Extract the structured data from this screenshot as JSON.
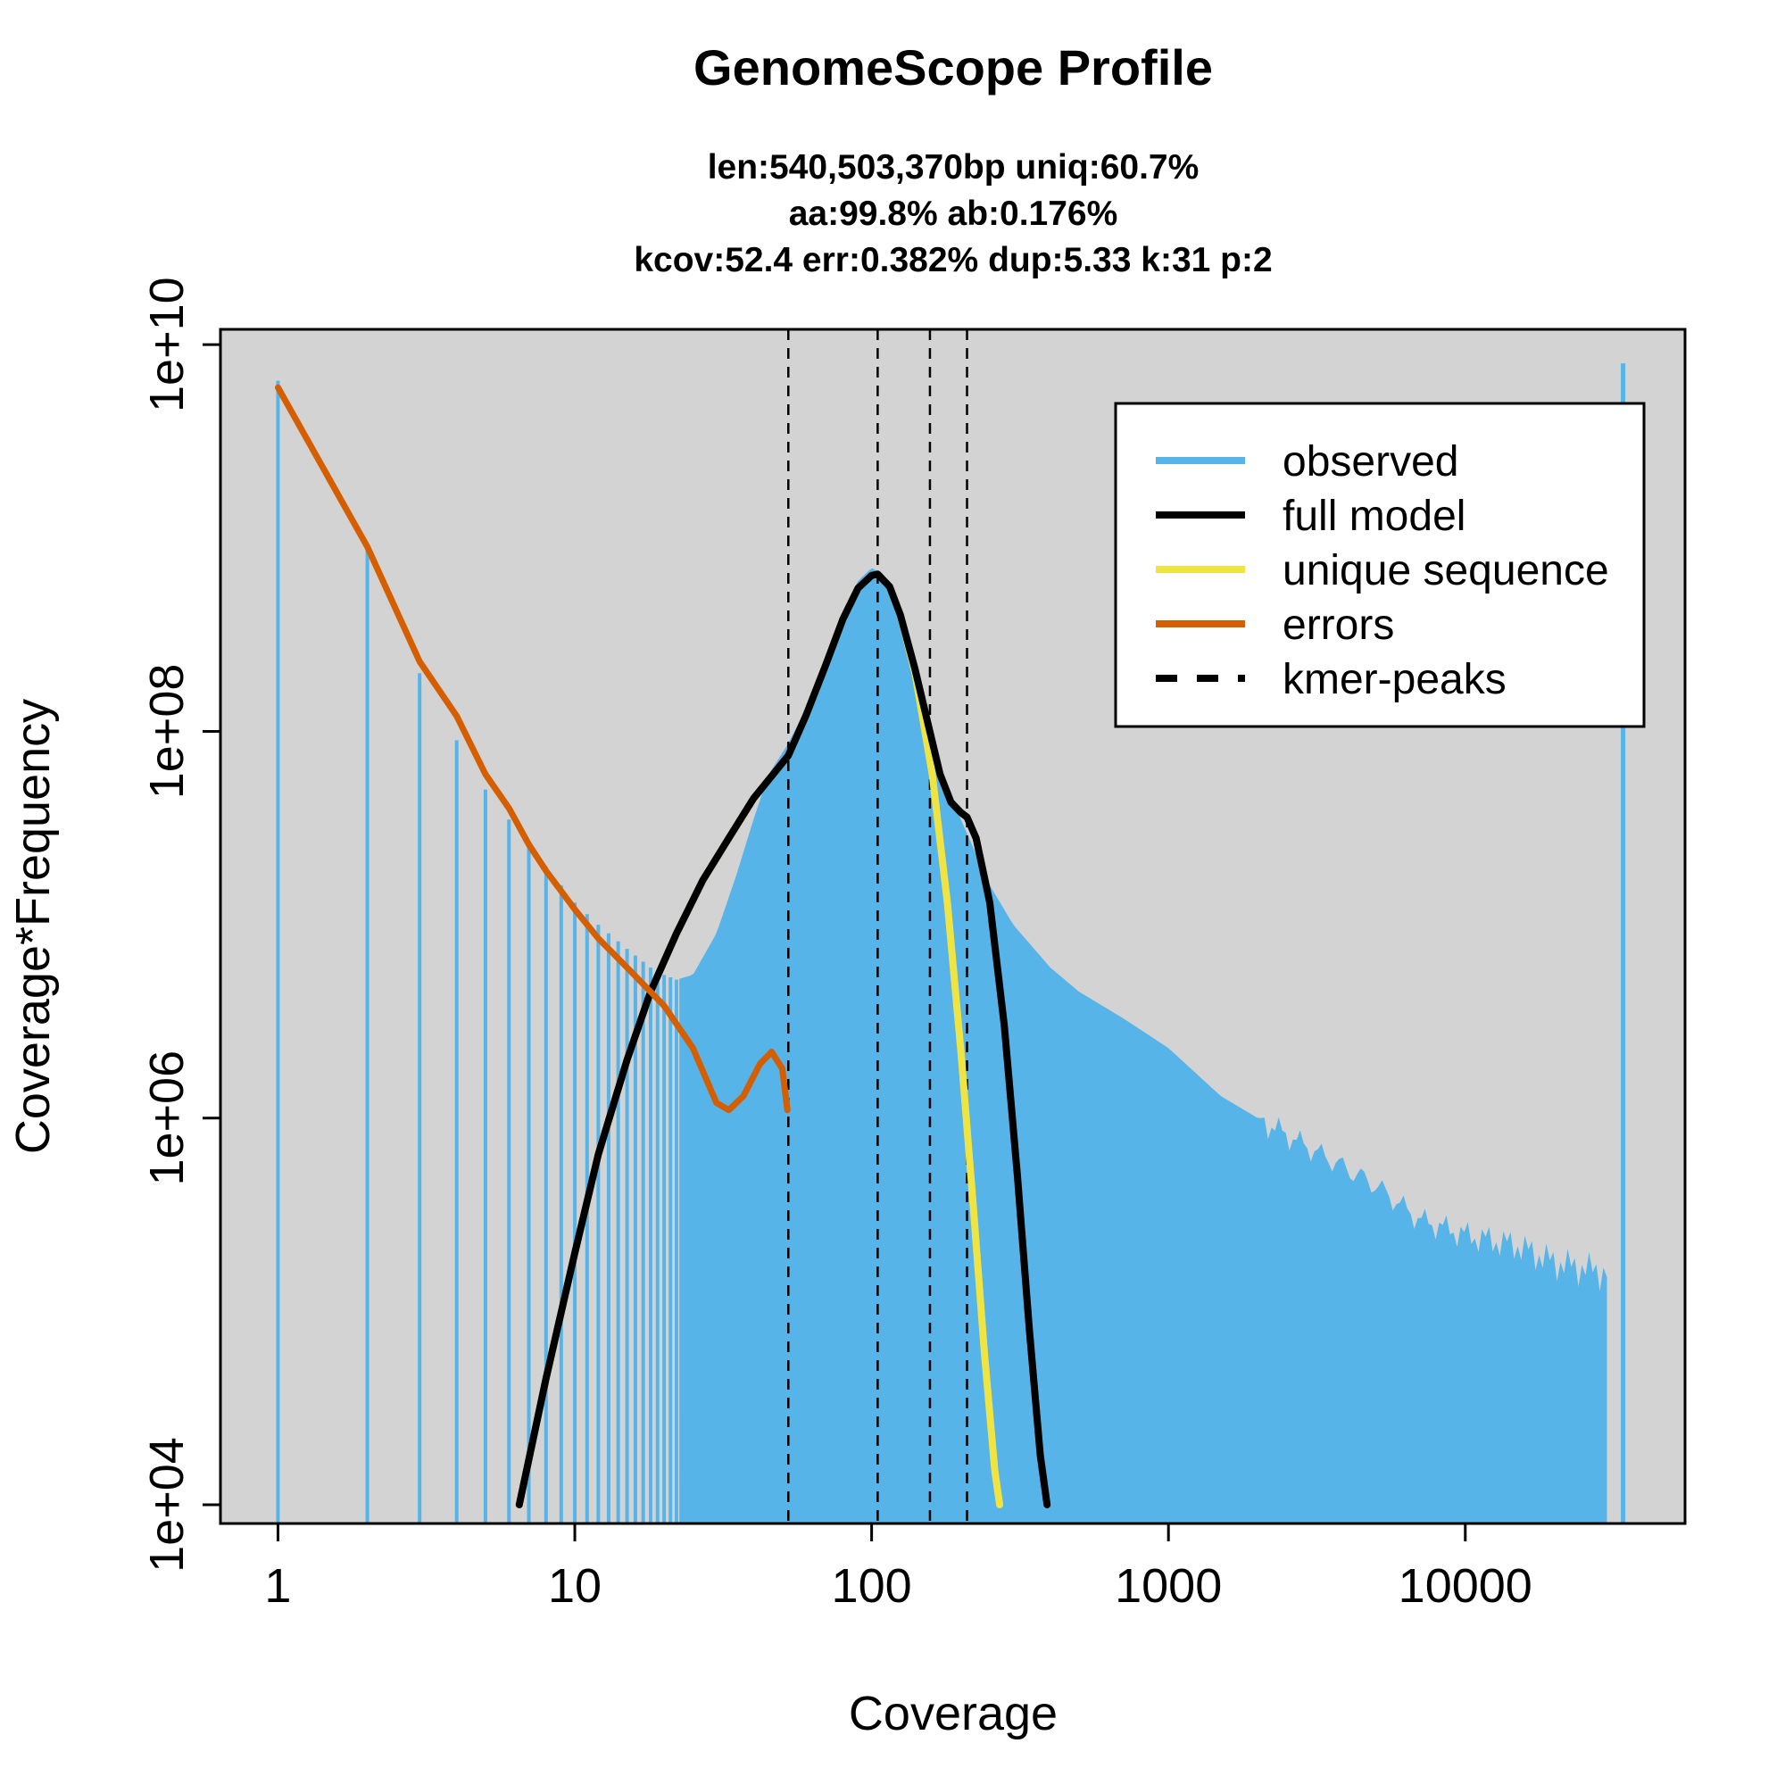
{
  "chart_data": {
    "type": "line",
    "title": "GenomeScope Profile",
    "subtitle_lines": [
      "len:540,503,370bp uniq:60.7%",
      "aa:99.8% ab:0.176%",
      "kcov:52.4 err:0.382%  dup:5.33  k:31 p:2"
    ],
    "xlabel": "Coverage",
    "ylabel": "Coverage*Frequency",
    "x_scale": "log",
    "y_scale": "log",
    "xlim": [
      0.64,
      55000
    ],
    "ylim": [
      8000,
      12000000000
    ],
    "x_ticks": [
      1,
      10,
      100,
      1000,
      10000
    ],
    "x_tick_labels": [
      "1",
      "10",
      "100",
      "1000",
      "10000"
    ],
    "y_ticks": [
      10000,
      1000000,
      100000000,
      10000000000
    ],
    "y_tick_labels": [
      "1e+04",
      "1e+06",
      "1e+08",
      "1e+10"
    ],
    "kmer_peaks": [
      52.4,
      104.8,
      157.2,
      209.6
    ],
    "legend": {
      "position": "top-right",
      "items": [
        {
          "label": "observed",
          "color": "#56B4E9",
          "style": "solid"
        },
        {
          "label": "full model",
          "color": "#000000",
          "style": "solid"
        },
        {
          "label": "unique sequence",
          "color": "#F0E442",
          "style": "solid"
        },
        {
          "label": "errors",
          "color": "#D55E00",
          "style": "solid"
        },
        {
          "label": "kmer-peaks",
          "color": "#000000",
          "style": "dashed"
        }
      ]
    },
    "colors": {
      "panel_background": "#D3D3D3",
      "observed": "#56B4E9",
      "full_model": "#000000",
      "unique_sequence": "#F0E442",
      "errors": "#D55E00",
      "peaks": "#000000"
    },
    "series": [
      {
        "name": "observed",
        "style": "histogram",
        "x": [
          1,
          2,
          3,
          4,
          5,
          6,
          7,
          8,
          9,
          10,
          12,
          15,
          18,
          20,
          22,
          25,
          30,
          35,
          40,
          45,
          52,
          60,
          70,
          80,
          90,
          100,
          110,
          120,
          140,
          160,
          180,
          200,
          220,
          250,
          300,
          400,
          500,
          700,
          1000,
          1500,
          2000,
          3000,
          5000,
          7000,
          10000,
          15000,
          20000,
          30000,
          34000
        ],
        "y": [
          6500000000,
          900000000,
          200000000,
          90000000,
          50000000,
          35000000,
          25000000,
          20000000,
          16000000,
          13000000,
          10000000,
          7500000,
          6000000,
          5500000,
          5200000,
          5500000,
          9000000,
          18000000,
          35000000,
          60000000,
          85000000,
          130000000,
          230000000,
          420000000,
          600000000,
          700000000,
          650000000,
          450000000,
          230000000,
          90000000,
          50000000,
          35000000,
          25000000,
          16000000,
          10000000,
          6000000,
          4500000,
          3300000,
          2300000,
          1300000,
          1000000,
          700000,
          450000,
          300000,
          250000,
          220000,
          180000,
          160000,
          8000000000
        ]
      },
      {
        "name": "errors",
        "x": [
          1,
          2,
          3,
          4,
          5,
          6,
          7,
          8,
          10,
          12,
          15,
          18,
          20,
          25,
          30,
          33,
          37,
          42,
          46,
          50,
          52
        ],
        "y": [
          6000000000,
          900000000,
          230000000,
          120000000,
          60000000,
          40000000,
          26000000,
          19000000,
          12000000,
          8500000,
          6000000,
          4500000,
          3800000,
          2300000,
          1200000,
          1100000,
          1300000,
          1900000,
          2200000,
          1800000,
          1100000
        ]
      },
      {
        "name": "unique sequence",
        "x": [
          6.5,
          8,
          10,
          12,
          15,
          18,
          22,
          27,
          33,
          40,
          52.4,
          60,
          70,
          80,
          90,
          100,
          104.8,
          115,
          125,
          140,
          160,
          180,
          200,
          220,
          240,
          260,
          270
        ],
        "y": [
          10000,
          45000,
          200000,
          650000,
          2000000,
          4500000,
          9000000,
          17000000,
          28000000,
          45000000,
          75000000,
          120000000,
          220000000,
          380000000,
          550000000,
          640000000,
          650000000,
          560000000,
          400000000,
          200000000,
          60000000,
          13000000,
          2200000,
          350000,
          60000,
          15000,
          10000
        ]
      },
      {
        "name": "full model",
        "x": [
          6.5,
          8,
          10,
          12,
          15,
          18,
          22,
          27,
          33,
          40,
          52.4,
          60,
          70,
          80,
          90,
          100,
          104.8,
          115,
          125,
          140,
          157,
          170,
          185,
          200,
          209.6,
          225,
          250,
          280,
          310,
          340,
          370,
          390
        ],
        "y": [
          10000,
          45000,
          200000,
          650000,
          2000000,
          4500000,
          9000000,
          17000000,
          28000000,
          45000000,
          75000000,
          120000000,
          220000000,
          380000000,
          550000000,
          640000000,
          650000000,
          560000000,
          400000000,
          210000000,
          100000000,
          60000000,
          43000000,
          38000000,
          36000000,
          28000000,
          13000000,
          3000000,
          500000,
          80000,
          18000,
          10000
        ]
      }
    ]
  }
}
